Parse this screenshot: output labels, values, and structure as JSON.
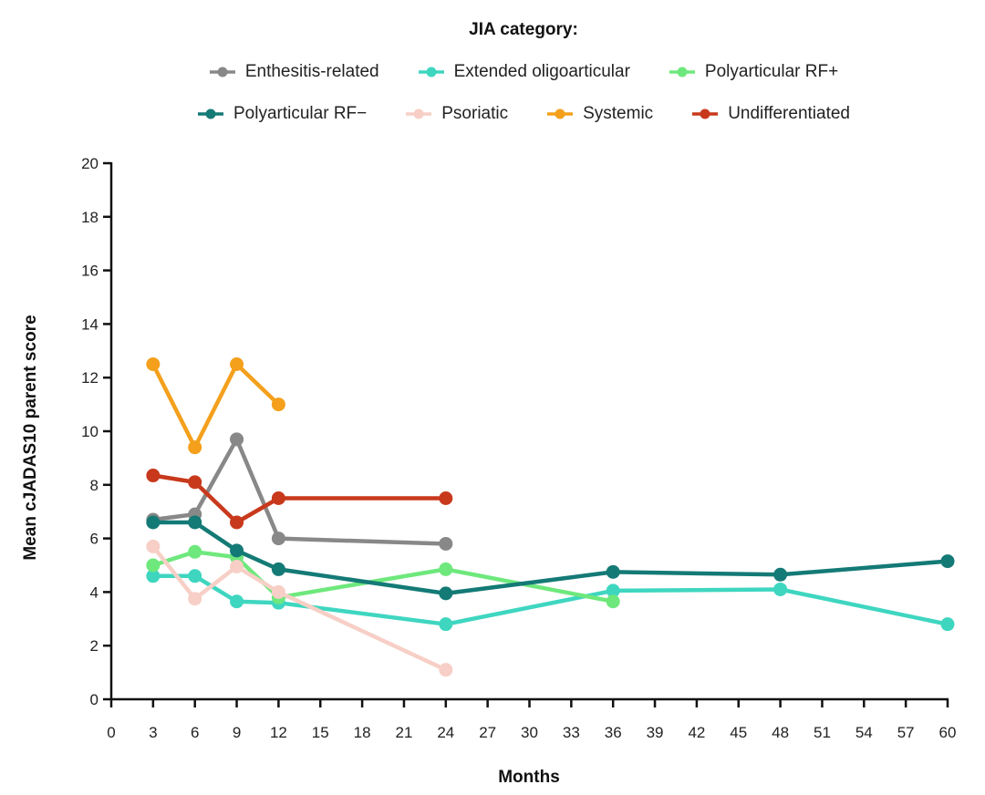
{
  "chart_data": {
    "type": "line",
    "title": "",
    "legend_title": "JIA category:",
    "legend_position": "top",
    "xlabel": "Months",
    "ylabel": "Mean cJADAS10 parent score",
    "xlim": [
      0,
      60
    ],
    "ylim": [
      0,
      20
    ],
    "x_ticks": [
      0,
      3,
      6,
      9,
      12,
      15,
      18,
      21,
      24,
      27,
      30,
      33,
      36,
      39,
      42,
      45,
      48,
      51,
      54,
      57,
      60
    ],
    "y_ticks": [
      0,
      2,
      4,
      6,
      8,
      10,
      12,
      14,
      16,
      18,
      20
    ],
    "grid": false,
    "series": [
      {
        "name": "Enthesitis-related",
        "color": "#888888",
        "x": [
          3,
          6,
          9,
          12,
          24
        ],
        "y": [
          6.7,
          6.9,
          9.7,
          6.0,
          5.8
        ]
      },
      {
        "name": "Extended oligoarticular",
        "color": "#3fd6c0",
        "x": [
          3,
          6,
          9,
          12,
          24,
          36,
          48,
          60
        ],
        "y": [
          4.6,
          4.6,
          3.65,
          3.6,
          2.8,
          4.05,
          4.1,
          2.8
        ]
      },
      {
        "name": "Polyarticular RF+",
        "color": "#6ee87c",
        "x": [
          3,
          6,
          9,
          12,
          24,
          36
        ],
        "y": [
          5.0,
          5.5,
          5.3,
          3.8,
          4.85,
          3.65
        ]
      },
      {
        "name": "Polyarticular RF−",
        "color": "#147a76",
        "x": [
          3,
          6,
          9,
          12,
          24,
          36,
          48,
          60
        ],
        "y": [
          6.6,
          6.6,
          5.55,
          4.85,
          3.95,
          4.75,
          4.65,
          5.15
        ]
      },
      {
        "name": "Psoriatic",
        "color": "#f7cfc6",
        "x": [
          3,
          6,
          9,
          12,
          24
        ],
        "y": [
          5.7,
          3.75,
          4.95,
          4.0,
          1.1
        ]
      },
      {
        "name": "Systemic",
        "color": "#f4a01c",
        "x": [
          3,
          6,
          9,
          12
        ],
        "y": [
          12.5,
          9.4,
          12.5,
          11.0
        ]
      },
      {
        "name": "Undifferentiated",
        "color": "#c8391c",
        "x": [
          3,
          6,
          9,
          12,
          24
        ],
        "y": [
          8.35,
          8.1,
          6.6,
          7.5,
          7.5
        ]
      }
    ]
  }
}
